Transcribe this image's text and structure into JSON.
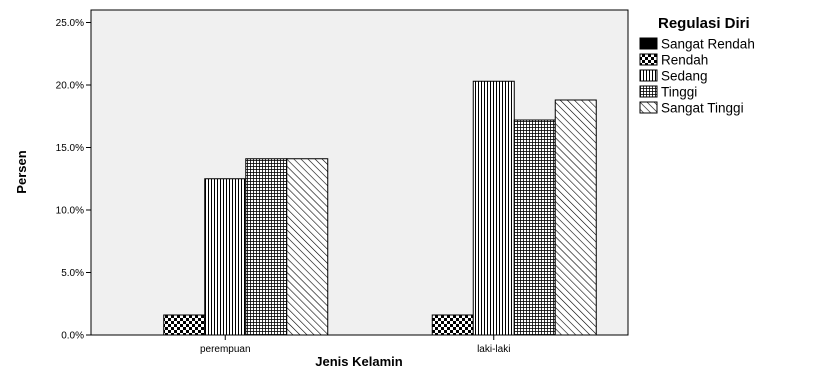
{
  "chart_data": {
    "type": "bar",
    "title": "",
    "xlabel": "Jenis Kelamin",
    "ylabel": "Persen",
    "categories": [
      "perempuan",
      "laki-laki"
    ],
    "ylim": [
      0,
      26
    ],
    "yticks": [
      0,
      5,
      10,
      15,
      20,
      25
    ],
    "ytick_labels": [
      "0.0%",
      "5.0%",
      "10.0%",
      "15.0%",
      "20.0%",
      "25.0%"
    ],
    "grid": false,
    "legend": {
      "title": "Regulasi Diri",
      "placement": "right"
    },
    "series": [
      {
        "name": "Sangat Rendah",
        "pattern": "solid",
        "values": [
          0,
          0
        ]
      },
      {
        "name": "Rendah",
        "pattern": "checker",
        "values": [
          1.6,
          1.6
        ]
      },
      {
        "name": "Sedang",
        "pattern": "vertical",
        "values": [
          12.5,
          20.3
        ]
      },
      {
        "name": "Tinggi",
        "pattern": "grid",
        "values": [
          14.1,
          17.2
        ]
      },
      {
        "name": "Sangat Tinggi",
        "pattern": "diagonal",
        "values": [
          14.1,
          18.8
        ]
      }
    ],
    "colors": {
      "plot_background": "#f0f0f0",
      "bar_fill": "#ffffff",
      "stroke": "#000000"
    }
  }
}
